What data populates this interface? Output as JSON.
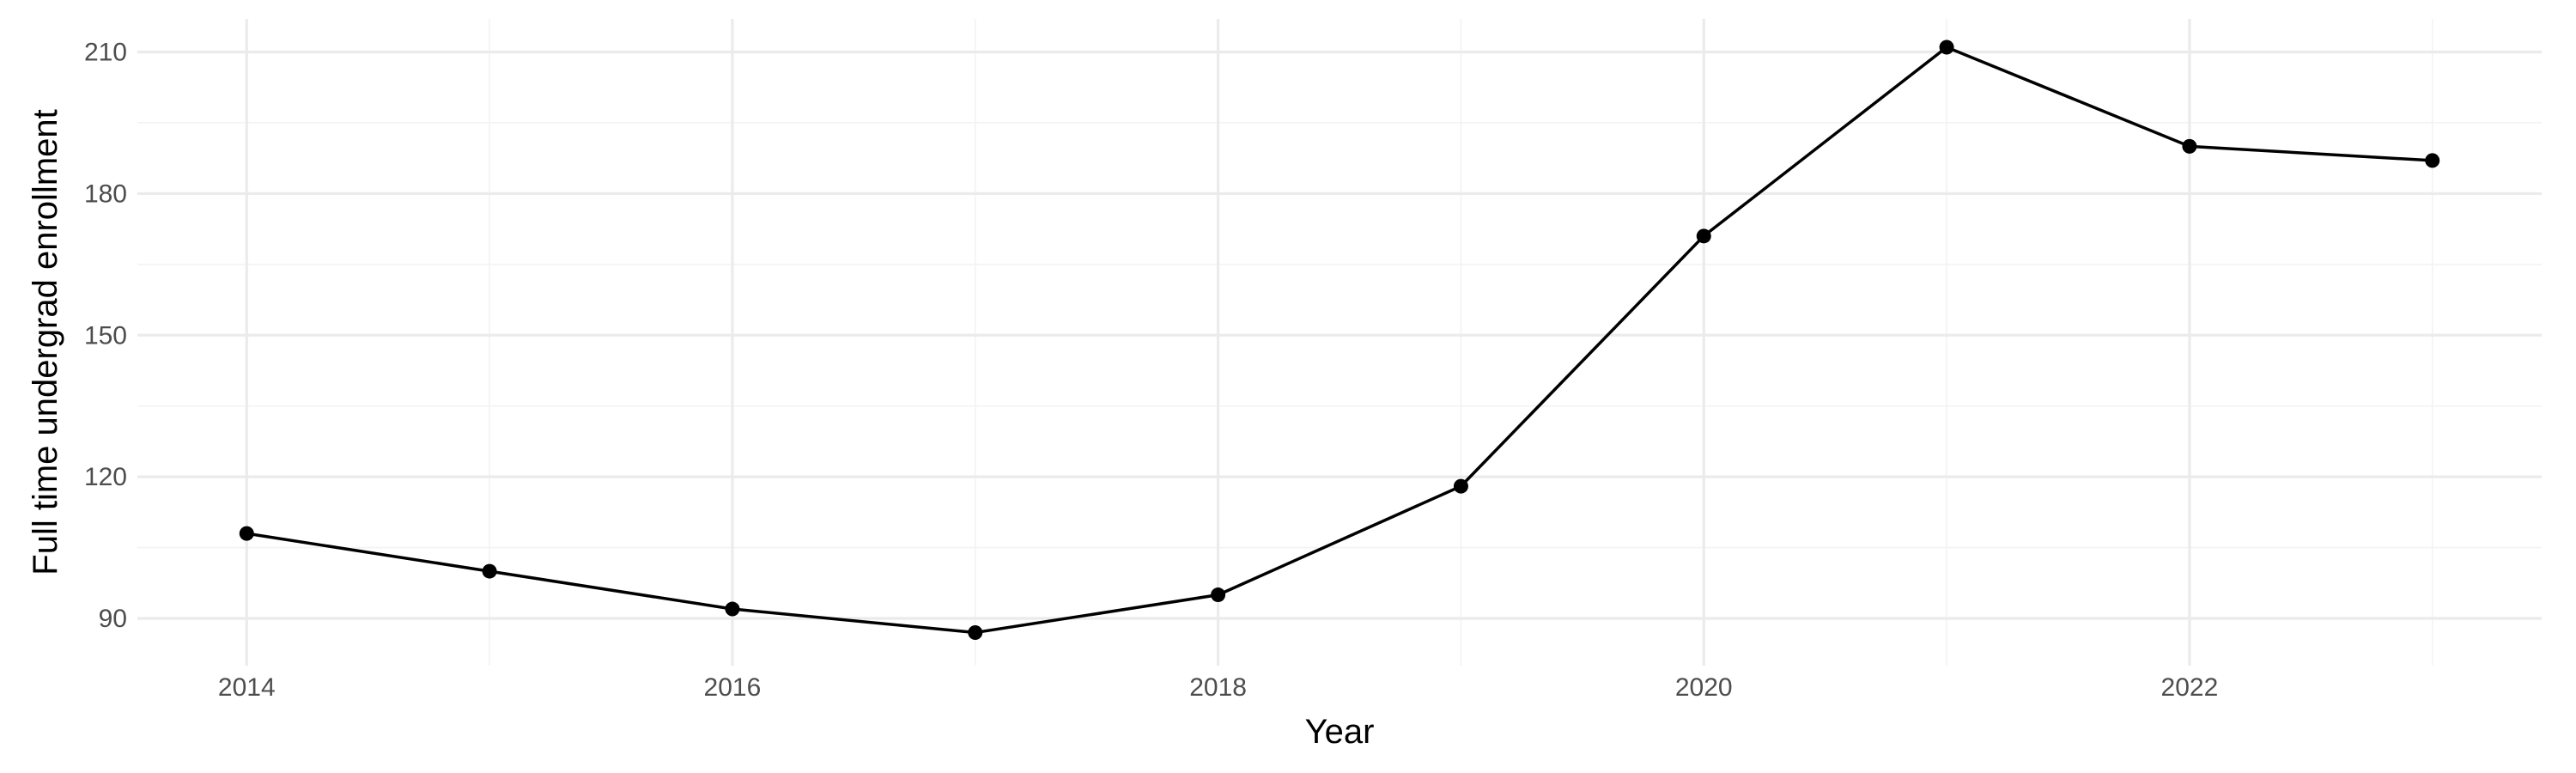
{
  "chart_data": {
    "type": "line",
    "title": "",
    "xlabel": "Year",
    "ylabel": "Full time undergrad enrollment",
    "x": [
      2014,
      2015,
      2016,
      2017,
      2018,
      2019,
      2020,
      2021,
      2022,
      2023
    ],
    "series": [
      {
        "values": [
          108,
          100,
          92,
          87,
          95,
          118,
          171,
          211,
          190,
          187
        ]
      }
    ],
    "x_ticks": [
      2014,
      2016,
      2018,
      2020,
      2022
    ],
    "y_ticks": [
      90,
      120,
      150,
      180,
      210
    ],
    "xlim": [
      2013.55,
      2023.45
    ],
    "ylim": [
      80,
      217
    ],
    "grid": true,
    "legend": "none",
    "colors": {
      "line": "#000000",
      "point": "#000000",
      "grid_major": "#ebebeb",
      "grid_minor": "#f3f3f3",
      "background": "#ffffff"
    }
  }
}
